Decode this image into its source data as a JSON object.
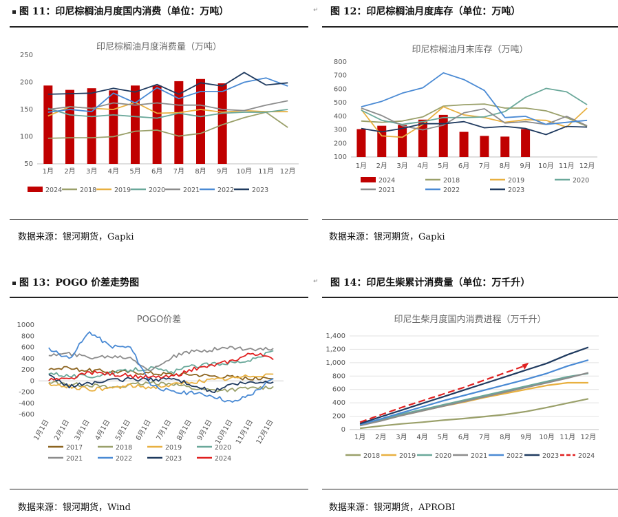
{
  "figures": [
    {
      "title": "图 11：印尼棕榈油月度国内消费（单位：万吨）",
      "source": "数据来源：银河期货，Gapki",
      "chart_data": {
        "type": "bar+line",
        "title": "印尼棕榈油月度消费量（万吨）",
        "categories": [
          "1月",
          "2月",
          "3月",
          "4月",
          "5月",
          "6月",
          "7月",
          "8月",
          "9月",
          "10月",
          "11月",
          "12月"
        ],
        "ylim": [
          50,
          250
        ],
        "yticks": [
          50,
          100,
          150,
          200,
          250
        ],
        "bar_series": {
          "name": "2024",
          "color": "#c00000",
          "values": [
            194,
            186,
            189,
            185,
            194,
            194,
            202,
            206,
            198,
            null,
            null,
            null
          ]
        },
        "series": [
          {
            "name": "2018",
            "color": "#9aa06a",
            "values": [
              97,
              98,
              98,
              100,
              110,
              112,
              101,
              106,
              122,
              135,
              145,
              117
            ]
          },
          {
            "name": "2019",
            "color": "#e8b040",
            "values": [
              138,
              155,
              152,
              150,
              163,
              143,
              144,
              150,
              145,
              148,
              146,
              146
            ]
          },
          {
            "name": "2020",
            "color": "#6aa89a",
            "values": [
              152,
              140,
              137,
              140,
              137,
              134,
              143,
              137,
              143,
              145,
              145,
              150
            ]
          },
          {
            "name": "2021",
            "color": "#8c8c8c",
            "values": [
              150,
              155,
              152,
              162,
              158,
              162,
              158,
              158,
              150,
              148,
              158,
              166
            ]
          },
          {
            "name": "2022",
            "color": "#4a8ad4",
            "values": [
              145,
              150,
              146,
              180,
              162,
              190,
              170,
              183,
              183,
              200,
              208,
              193
            ]
          },
          {
            "name": "2023",
            "color": "#1f3a5f",
            "values": [
              178,
              179,
              180,
              189,
              182,
              196,
              178,
              199,
              193,
              218,
              195,
              199
            ]
          }
        ]
      }
    },
    {
      "title": "图 12：印尼棕榈油月度库存（单位：万吨）",
      "source": "数据来源：银河期货，Gapki",
      "chart_data": {
        "type": "bar+line",
        "title": "印尼棕榈油月末库存（万吨）",
        "categories": [
          "1月",
          "2月",
          "3月",
          "4月",
          "5月",
          "6月",
          "7月",
          "8月",
          "9月",
          "10月",
          "11月",
          "12月"
        ],
        "ylim": [
          100,
          800
        ],
        "yticks": [
          100,
          200,
          300,
          400,
          500,
          600,
          700,
          800
        ],
        "bar_series": {
          "name": "2024",
          "color": "#c00000",
          "values": [
            305,
            330,
            335,
            375,
            410,
            285,
            255,
            250,
            305,
            null,
            null,
            null
          ]
        },
        "series": [
          {
            "name": "2018",
            "color": "#9aa06a",
            "values": [
              365,
              355,
              365,
              395,
              475,
              485,
              490,
              460,
              460,
              440,
              390,
              325
            ]
          },
          {
            "name": "2019",
            "color": "#e8b040",
            "values": [
              450,
              255,
              245,
              340,
              470,
              410,
              390,
              355,
              375,
              370,
              320,
              460
            ]
          },
          {
            "name": "2020",
            "color": "#6aa89a",
            "values": [
              445,
              370,
              340,
              360,
              390,
              390,
              395,
              435,
              540,
              605,
              580,
              485
            ]
          },
          {
            "name": "2021",
            "color": "#8c8c8c",
            "values": [
              460,
              405,
              330,
              300,
              335,
              425,
              455,
              350,
              360,
              340,
              400,
              330
            ]
          },
          {
            "name": "2022",
            "color": "#4a8ad4",
            "values": [
              470,
              510,
              570,
              610,
              720,
              670,
              590,
              390,
              400,
              340,
              355,
              370
            ]
          },
          {
            "name": "2023",
            "color": "#1f3a5f",
            "values": [
              310,
              285,
              310,
              345,
              345,
              360,
              315,
              325,
              310,
              265,
              325,
              320
            ]
          }
        ]
      }
    },
    {
      "title": "图 13：POGO 价差走势图",
      "source": "数据来源：银河期货，Wind",
      "chart_data": {
        "type": "line",
        "title": "POGO价差",
        "categories": [
          "1月1日",
          "2月1日",
          "3月1日",
          "4月1日",
          "5月1日",
          "6月1日",
          "7月1日",
          "8月1日",
          "9月1日",
          "10月1日",
          "11月1日",
          "12月1日"
        ],
        "ylim": [
          -600,
          1000
        ],
        "yticks": [
          -600,
          -400,
          -200,
          0,
          200,
          400,
          600,
          800,
          1000
        ],
        "series": [
          {
            "name": "2017",
            "color": "#8c6420",
            "values": [
              230,
              220,
              190,
              170,
              160,
              140,
              120,
              120,
              90,
              70,
              40,
              40
            ]
          },
          {
            "name": "2018",
            "color": "#9aa06a",
            "values": [
              -20,
              -60,
              -70,
              -120,
              -80,
              -40,
              -40,
              -130,
              -170,
              -160,
              -130,
              -100
            ]
          },
          {
            "name": "2019",
            "color": "#e8b040",
            "values": [
              -50,
              -100,
              -150,
              -130,
              -90,
              -120,
              -80,
              -20,
              10,
              40,
              90,
              120
            ]
          },
          {
            "name": "2020",
            "color": "#6aa89a",
            "values": [
              150,
              90,
              80,
              130,
              200,
              230,
              150,
              260,
              300,
              330,
              380,
              540
            ]
          },
          {
            "name": "2021",
            "color": "#8c8c8c",
            "values": [
              460,
              480,
              420,
              440,
              420,
              180,
              420,
              520,
              560,
              600,
              560,
              580
            ]
          },
          {
            "name": "2022",
            "color": "#4a8ad4",
            "values": [
              580,
              400,
              880,
              620,
              600,
              -60,
              -200,
              -220,
              -260,
              -390,
              -220,
              40
            ]
          },
          {
            "name": "2023",
            "color": "#1f3a5f",
            "values": [
              80,
              -100,
              -40,
              0,
              30,
              20,
              40,
              -60,
              -200,
              -60,
              -40,
              -20
            ]
          },
          {
            "name": "2024",
            "color": "#e02020",
            "values": [
              20,
              20,
              150,
              120,
              90,
              60,
              70,
              200,
              270,
              360,
              500,
              380
            ]
          }
        ]
      }
    },
    {
      "title": "图 14：印尼生柴累计消费量（单位：万千升）",
      "source": "数据来源：银河期货，APROBI",
      "chart_data": {
        "type": "line",
        "title": "印尼生柴月度国内消费进程（万千升）",
        "categories": [
          "1月",
          "2月",
          "3月",
          "4月",
          "5月",
          "6月",
          "7月",
          "8月",
          "9月",
          "10月",
          "11月",
          "12月"
        ],
        "ylim": [
          0,
          1400
        ],
        "yticks": [
          0,
          200,
          400,
          600,
          800,
          1000,
          1200,
          1400
        ],
        "tick_labels": [
          "0",
          "200",
          "400",
          "600",
          "800",
          "1,000",
          "1,200",
          "1,400"
        ],
        "series": [
          {
            "name": "2018",
            "color": "#9aa06a",
            "values": [
              20,
              55,
              85,
              110,
              140,
              165,
              195,
              225,
              270,
              330,
              395,
              460
            ]
          },
          {
            "name": "2019",
            "color": "#e8b040",
            "values": [
              60,
              140,
              210,
              280,
              350,
              410,
              480,
              540,
              600,
              660,
              700,
              700
            ]
          },
          {
            "name": "2020",
            "color": "#6aa89a",
            "values": [
              70,
              150,
              230,
              300,
              370,
              440,
              510,
              580,
              650,
              720,
              790,
              840
            ]
          },
          {
            "name": "2021",
            "color": "#8c8c8c",
            "values": [
              60,
              130,
              210,
              280,
              350,
              420,
              490,
              560,
              630,
              700,
              770,
              850
            ]
          },
          {
            "name": "2022",
            "color": "#4a8ad4",
            "values": [
              75,
              160,
              250,
              340,
              430,
              510,
              590,
              670,
              750,
              840,
              950,
              1040
            ]
          },
          {
            "name": "2023",
            "color": "#1f3a5f",
            "values": [
              90,
              190,
              290,
              390,
              490,
              590,
              690,
              790,
              890,
              990,
              1120,
              1230
            ]
          },
          {
            "name": "2024",
            "color": "#e02020",
            "values": [
              110,
              220,
              330,
              430,
              530,
              630,
              740,
              850,
              960,
              null,
              null,
              null
            ]
          }
        ]
      }
    }
  ]
}
